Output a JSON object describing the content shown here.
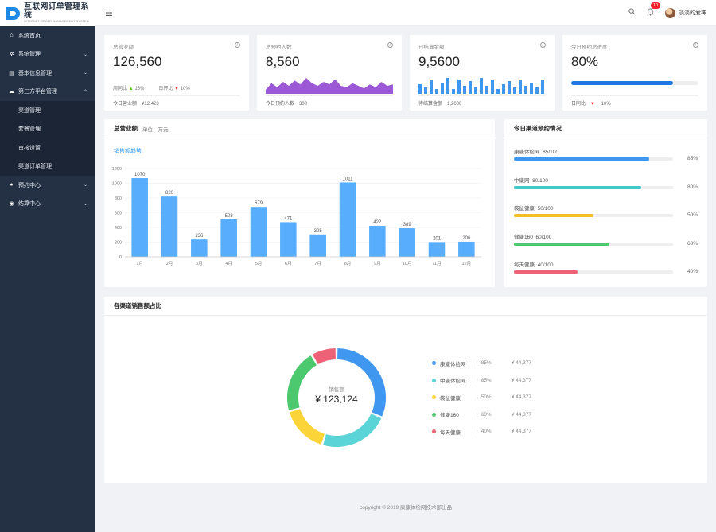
{
  "app": {
    "title": "互联网订单管理系统",
    "subtitle": "INTERNET ORDER MANAGEMENT SYSTEM"
  },
  "sidebar": {
    "items": [
      {
        "label": "系统首页",
        "icon": "home-icon",
        "has_children": false
      },
      {
        "label": "系统管理",
        "icon": "gear-icon",
        "has_children": true
      },
      {
        "label": "基本信息管理",
        "icon": "document-icon",
        "has_children": true
      },
      {
        "label": "第三方平台管理",
        "icon": "cloud-icon",
        "has_children": true,
        "expanded": true,
        "children": [
          {
            "label": "渠道管理"
          },
          {
            "label": "套餐管理"
          },
          {
            "label": "审核设置"
          },
          {
            "label": "渠道订单管理"
          }
        ]
      },
      {
        "label": "预约中心",
        "icon": "calendar-icon",
        "has_children": true
      },
      {
        "label": "结算中心",
        "icon": "settlement-icon",
        "has_children": true
      }
    ]
  },
  "header": {
    "notification_count": "10",
    "username": "淡淡的爱神"
  },
  "kpis": [
    {
      "title": "总营业额",
      "value": "126,560",
      "wow_label": "周同比",
      "wow_value": "16%",
      "dod_label": "日环比",
      "dod_value": "10%",
      "foot_label": "今日营业额",
      "foot_value": "¥12,423"
    },
    {
      "title": "总预约人数",
      "value": "8,560",
      "foot_label": "今日预约人数",
      "foot_value": "300"
    },
    {
      "title": "已结算金额",
      "value": "9,5600",
      "foot_label": "待结算金额",
      "foot_value": "1,2000"
    },
    {
      "title": "今日预约总进度",
      "value": "80%",
      "progress": 0.8,
      "foot_label": "日同比",
      "foot_value": "10%"
    }
  ],
  "revenue": {
    "title": "总营业额",
    "unit": "单位：万元",
    "link": "销售额趋势"
  },
  "chart_data": {
    "type": "bar",
    "categories": [
      "1月",
      "2月",
      "3月",
      "4月",
      "5月",
      "6月",
      "7月",
      "8月",
      "9月",
      "10月",
      "11月",
      "12月"
    ],
    "values": [
      1070,
      820,
      236,
      508,
      679,
      471,
      305,
      1011,
      422,
      389,
      201,
      206
    ],
    "ylim": [
      0,
      1200
    ],
    "yticks": [
      "0",
      "200",
      "400",
      "600",
      "800",
      "1000",
      "1200"
    ],
    "color": "#58aefc"
  },
  "channels": {
    "title": "今日渠道预约情况",
    "rows": [
      {
        "name": "康康体检网",
        "count": "85/100",
        "pct": "85%",
        "value": 0.85,
        "color": "#3f97f0"
      },
      {
        "name": "中康网",
        "count": "80/100",
        "pct": "80%",
        "value": 0.8,
        "color": "#3fc9c9"
      },
      {
        "name": "袋鼠健康",
        "count": "50/100",
        "pct": "50%",
        "value": 0.5,
        "color": "#f4bf24"
      },
      {
        "name": "健康160",
        "count": "60/100",
        "pct": "60%",
        "value": 0.6,
        "color": "#4cc86e"
      },
      {
        "name": "每天健康",
        "count": "40/100",
        "pct": "40%",
        "value": 0.4,
        "color": "#ee6277"
      }
    ]
  },
  "share": {
    "title": "各渠道销售额占比",
    "center_label": "销售额",
    "center_value": "¥ 123,124",
    "legend": [
      {
        "name": "康康体检网",
        "pct": "85%",
        "amount": "¥ 44,377",
        "color": "#3f97f0",
        "share": 0.3
      },
      {
        "name": "中康体检网",
        "pct": "85%",
        "amount": "¥ 44,377",
        "color": "#5bd4d8",
        "share": 0.22
      },
      {
        "name": "袋鼠健康",
        "pct": "50%",
        "amount": "¥ 44,377",
        "color": "#fbd43a",
        "share": 0.15
      },
      {
        "name": "健康160",
        "pct": "60%",
        "amount": "¥ 44,377",
        "color": "#4cc86e",
        "share": 0.2
      },
      {
        "name": "每天健康",
        "pct": "40%",
        "amount": "¥ 44,377",
        "color": "#ee6277",
        "share": 0.08
      }
    ]
  },
  "area_chart": [
    3,
    8,
    5,
    9,
    6,
    10,
    7,
    12,
    8,
    6,
    9,
    7,
    11,
    6,
    5,
    8,
    6,
    4,
    7,
    5,
    9,
    6,
    7
  ],
  "mini_bars": [
    6,
    4,
    9,
    3,
    7,
    10,
    3,
    9,
    5,
    8,
    4,
    10,
    5,
    9,
    3,
    6,
    8,
    4,
    9,
    5,
    7,
    4,
    9
  ],
  "footer": "copyright © 2019 康康体检网技术部出品"
}
